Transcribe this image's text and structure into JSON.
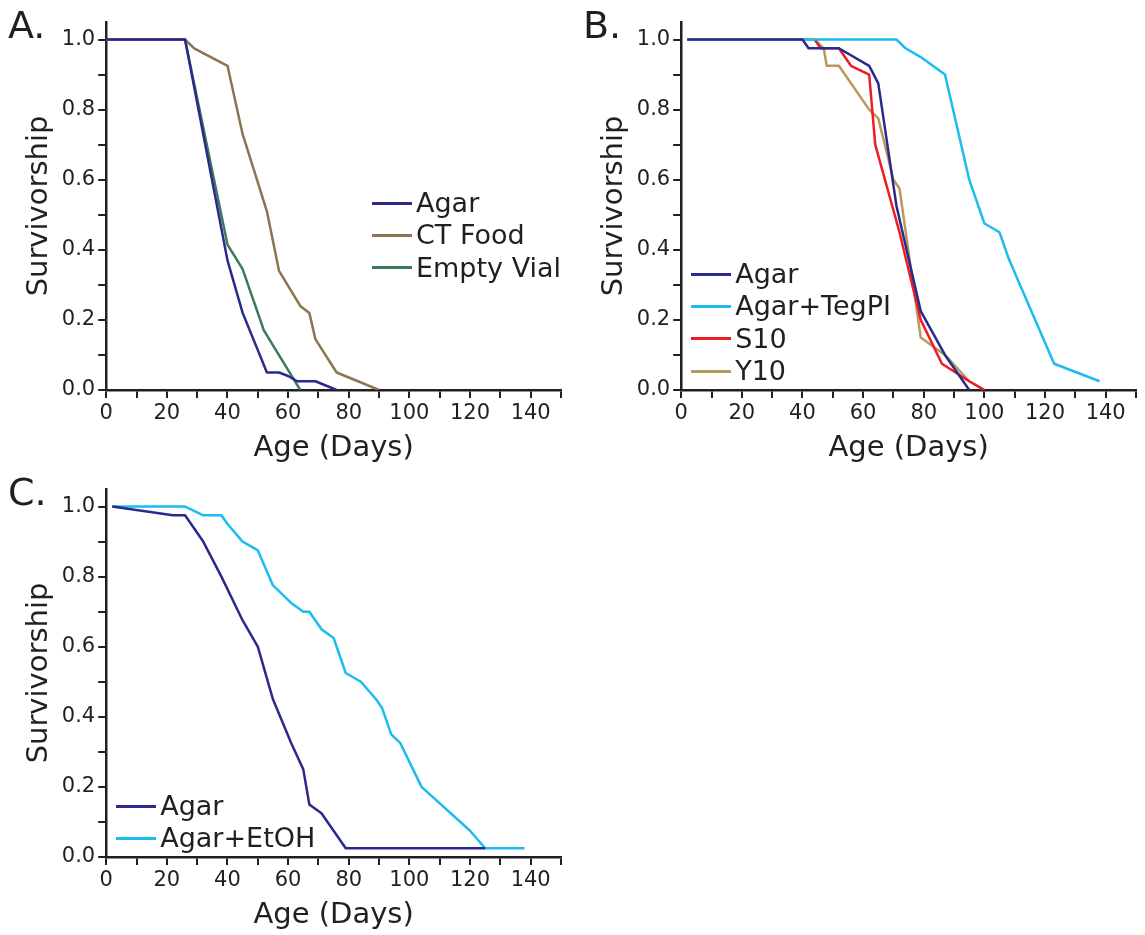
{
  "chart_data": [
    {
      "type": "line",
      "title": "A.",
      "xlabel": "Age (Days)",
      "ylabel": "Survivorship",
      "xlim": [
        0,
        150
      ],
      "ylim": [
        0,
        1.05
      ],
      "xticks": [
        0,
        {
          "value": 10,
          "label": null
        },
        20,
        {
          "value": 30,
          "label": null
        },
        40,
        {
          "value": 50,
          "label": null
        },
        60,
        {
          "value": 70,
          "label": null
        },
        80,
        {
          "value": 90,
          "label": null
        },
        100,
        {
          "value": 110,
          "label": null
        },
        120,
        {
          "value": 130,
          "label": null
        },
        140,
        {
          "value": 150,
          "label": null
        }
      ],
      "yticks": [
        {
          "value": 0,
          "label": "0.0"
        },
        {
          "value": 0.1,
          "label": null
        },
        0.2,
        {
          "value": 0.3,
          "label": null
        },
        0.4,
        {
          "value": 0.5,
          "label": null
        },
        0.6,
        {
          "value": 0.7,
          "label": null
        },
        0.8,
        {
          "value": 0.9,
          "label": null
        },
        {
          "value": 1,
          "label": "1.0"
        }
      ],
      "grid": false,
      "legend": "right",
      "marker": "none",
      "line_style": "solid",
      "series": [
        {
          "name": "Agar",
          "color": "#2b2a8c",
          "x": [
            0,
            26,
            40,
            45,
            53,
            57,
            60,
            63,
            69,
            76
          ],
          "values": [
            1,
            1,
            0.37,
            0.22,
            0.05,
            0.05,
            0.04,
            0.025,
            0.025,
            0
          ]
        },
        {
          "name": "CT Food",
          "color": "#8b7550",
          "x": [
            0,
            26,
            29,
            40,
            45,
            53,
            57,
            64,
            67,
            69,
            76,
            90
          ],
          "values": [
            1,
            1,
            0.975,
            0.925,
            0.73,
            0.51,
            0.34,
            0.24,
            0.22,
            0.145,
            0.05,
            0
          ]
        },
        {
          "name": "Empty Vial",
          "color": "#3f7a58",
          "x": [
            0,
            26,
            40,
            45,
            52,
            58,
            64
          ],
          "values": [
            1,
            1,
            0.415,
            0.345,
            0.17,
            0.085,
            0
          ]
        }
      ]
    },
    {
      "type": "line",
      "title": "B.",
      "xlabel": "Age (Days)",
      "ylabel": "Survivorship",
      "xlim": [
        0,
        150
      ],
      "ylim": [
        0,
        1.05
      ],
      "xticks": [
        0,
        {
          "value": 10,
          "label": null
        },
        20,
        {
          "value": 30,
          "label": null
        },
        40,
        {
          "value": 50,
          "label": null
        },
        60,
        {
          "value": 70,
          "label": null
        },
        80,
        {
          "value": 90,
          "label": null
        },
        100,
        {
          "value": 110,
          "label": null
        },
        120,
        {
          "value": 130,
          "label": null
        },
        140,
        {
          "value": 150,
          "label": null
        }
      ],
      "yticks": [
        {
          "value": 0,
          "label": "0.0"
        },
        {
          "value": 0.1,
          "label": null
        },
        0.2,
        {
          "value": 0.3,
          "label": null
        },
        0.4,
        {
          "value": 0.5,
          "label": null
        },
        0.6,
        {
          "value": 0.7,
          "label": null
        },
        0.8,
        {
          "value": 0.9,
          "label": null
        },
        {
          "value": 1,
          "label": "1.0"
        }
      ],
      "grid": false,
      "legend": "bottom left",
      "marker": "none",
      "line_style": "solid",
      "series": [
        {
          "name": "Agar",
          "color": "#2b2a8c",
          "x": [
            2,
            40,
            42,
            46,
            52,
            62,
            65,
            68,
            71,
            79,
            87,
            95
          ],
          "values": [
            1,
            1,
            0.975,
            0.975,
            0.975,
            0.925,
            0.875,
            0.7,
            0.525,
            0.225,
            0.1,
            0
          ]
        },
        {
          "name": "Agar+TegPI",
          "color": "#1bbcef",
          "x": [
            2,
            71,
            74,
            79,
            87,
            95,
            100,
            105,
            108,
            123,
            138
          ],
          "values": [
            1,
            1,
            0.975,
            0.95,
            0.9,
            0.6,
            0.475,
            0.45,
            0.375,
            0.075,
            0.025
          ]
        },
        {
          "name": "S10",
          "color": "#ee1c24",
          "x": [
            44,
            46,
            52,
            56,
            62,
            64,
            72,
            79,
            86,
            95,
            100
          ],
          "values": [
            1,
            0.975,
            0.975,
            0.925,
            0.9,
            0.7,
            0.45,
            0.2,
            0.075,
            0.025,
            0
          ]
        },
        {
          "name": "Y10",
          "color": "#b89a5a",
          "x": [
            2,
            44,
            47,
            48,
            52,
            56,
            62,
            65,
            70,
            72,
            79,
            87,
            95,
            100
          ],
          "values": [
            1,
            1,
            0.975,
            0.925,
            0.925,
            0.875,
            0.8,
            0.775,
            0.6,
            0.575,
            0.15,
            0.1,
            0.025,
            0
          ]
        }
      ]
    },
    {
      "type": "line",
      "title": "C.",
      "xlabel": "Age (Days)",
      "ylabel": "Survivorship",
      "xlim": [
        0,
        150
      ],
      "ylim": [
        0,
        1.05
      ],
      "xticks": [
        0,
        {
          "value": 10,
          "label": null
        },
        20,
        {
          "value": 30,
          "label": null
        },
        40,
        {
          "value": 50,
          "label": null
        },
        60,
        {
          "value": 70,
          "label": null
        },
        80,
        {
          "value": 90,
          "label": null
        },
        100,
        {
          "value": 110,
          "label": null
        },
        120,
        {
          "value": 130,
          "label": null
        },
        140,
        {
          "value": 150,
          "label": null
        }
      ],
      "yticks": [
        {
          "value": 0,
          "label": "0.0"
        },
        {
          "value": 0.1,
          "label": null
        },
        0.2,
        {
          "value": 0.3,
          "label": null
        },
        0.4,
        {
          "value": 0.5,
          "label": null
        },
        0.6,
        {
          "value": 0.7,
          "label": null
        },
        0.8,
        {
          "value": 0.9,
          "label": null
        },
        {
          "value": 1,
          "label": "1.0"
        }
      ],
      "grid": false,
      "legend": "bottom left",
      "marker": "none",
      "line_style": "solid",
      "series": [
        {
          "name": "Agar",
          "color": "#2b2a8c",
          "x": [
            2,
            22,
            26,
            32,
            38,
            45,
            50,
            55,
            61,
            65,
            67,
            71,
            79,
            125
          ],
          "values": [
            1,
            0.975,
            0.975,
            0.9,
            0.8,
            0.675,
            0.6,
            0.45,
            0.325,
            0.25,
            0.15,
            0.125,
            0.025,
            0.025
          ]
        },
        {
          "name": "Agar+EtOH",
          "color": "#1bbcef",
          "x": [
            2,
            26,
            32,
            38,
            40,
            45,
            50,
            55,
            61,
            65,
            67,
            71,
            75,
            79,
            84,
            89,
            91,
            94,
            97,
            104,
            120,
            125,
            138
          ],
          "values": [
            1,
            1,
            0.975,
            0.975,
            0.95,
            0.9,
            0.875,
            0.775,
            0.725,
            0.7,
            0.7,
            0.65,
            0.625,
            0.525,
            0.5,
            0.45,
            0.425,
            0.35,
            0.325,
            0.2,
            0.075,
            0.025,
            0.025
          ]
        }
      ]
    }
  ]
}
